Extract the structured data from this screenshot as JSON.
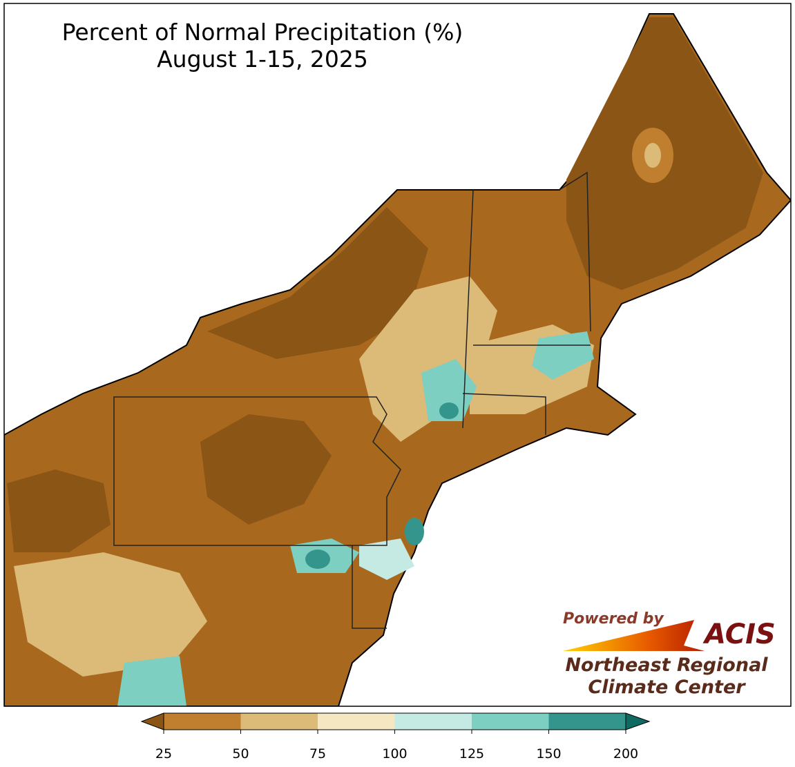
{
  "map": {
    "title": "Percent of Normal Precipitation (%)",
    "subtitle": "August 1-15, 2025",
    "colorbar": {
      "ticks": [
        25,
        50,
        75,
        100,
        125,
        150,
        200
      ],
      "colors": [
        "#8b5516",
        "#bf7f2f",
        "#dcbb78",
        "#f6e7c3",
        "#c4eae3",
        "#7ccfc1",
        "#33958b",
        "#0f6a61"
      ]
    },
    "logo": {
      "powered": "Powered by",
      "brand": "ACIS",
      "line1": "Northeast Regional",
      "line2": "Climate Center"
    }
  }
}
